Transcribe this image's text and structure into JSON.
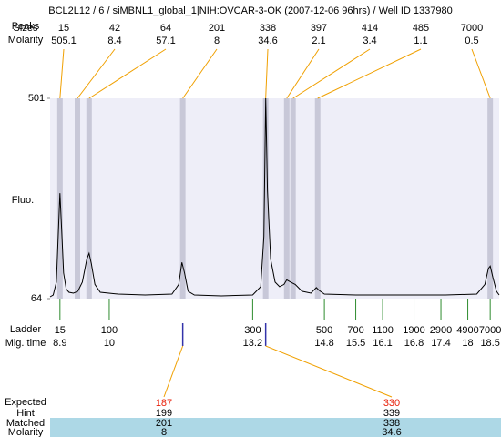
{
  "chart_data": {
    "type": "electropherogram",
    "title": "BCL2L12 / 6 / siMBNL1_global_1|NIH:OVCAR-3-OK (2007-12-06 96hrs) / Well ID 1337980",
    "peaks_label": "Peaks",
    "sizes_label": "Sizes",
    "molarity_label": "Molarity",
    "y_label": "Fluo.",
    "ylim": [
      64,
      501
    ],
    "yticks": [
      64,
      501
    ],
    "xlim": [
      8.68,
      18.7
    ],
    "peaks": {
      "sizes": [
        15,
        42,
        64,
        201,
        338,
        397,
        414,
        485,
        7000
      ],
      "molarity": [
        505.1,
        8.4,
        57.1,
        8,
        34.6,
        2.1,
        3.4,
        1.1,
        0.5
      ],
      "times": [
        8.9,
        9.29,
        9.55,
        11.64,
        13.49,
        13.96,
        14.1,
        14.65,
        18.5
      ]
    },
    "ladder": {
      "label": "Ladder",
      "time_label": "Mig. time",
      "sizes": [
        15,
        100,
        300,
        500,
        700,
        1100,
        1900,
        2900,
        4900,
        7000
      ],
      "times": [
        8.9,
        10,
        13.2,
        14.8,
        15.5,
        16.1,
        16.8,
        17.4,
        18,
        18.5
      ]
    },
    "trace": {
      "color": "#000000",
      "x": [
        8.68,
        8.75,
        8.82,
        8.86,
        8.9,
        8.94,
        8.98,
        9.04,
        9.1,
        9.2,
        9.3,
        9.4,
        9.5,
        9.55,
        9.6,
        9.68,
        9.8,
        10.2,
        10.8,
        11.4,
        11.55,
        11.62,
        11.68,
        11.76,
        11.9,
        12.5,
        13.2,
        13.38,
        13.45,
        13.49,
        13.53,
        13.6,
        13.7,
        13.8,
        13.9,
        13.96,
        14.05,
        14.15,
        14.3,
        14.5,
        14.62,
        14.68,
        14.8,
        15.5,
        16.5,
        17.5,
        18.2,
        18.38,
        18.46,
        18.5,
        18.56,
        18.64,
        18.7
      ],
      "y": [
        68,
        72,
        100,
        200,
        294,
        210,
        120,
        85,
        78,
        76,
        80,
        100,
        150,
        163,
        140,
        95,
        78,
        74,
        72,
        74,
        95,
        143,
        120,
        80,
        72,
        70,
        72,
        90,
        200,
        501,
        300,
        150,
        100,
        90,
        95,
        105,
        100,
        95,
        80,
        76,
        88,
        82,
        74,
        72,
        72,
        72,
        74,
        95,
        130,
        135,
        110,
        80,
        72
      ]
    },
    "expected": {
      "label": "Expected",
      "hint_label": "Hint",
      "matched_label": "Matched",
      "molarity_label": "Molarity",
      "values": [
        187,
        330
      ],
      "hint": [
        199,
        339
      ],
      "matched": [
        201,
        338
      ],
      "molarity": [
        8,
        34.6
      ],
      "peak_index": [
        3,
        4
      ]
    }
  }
}
